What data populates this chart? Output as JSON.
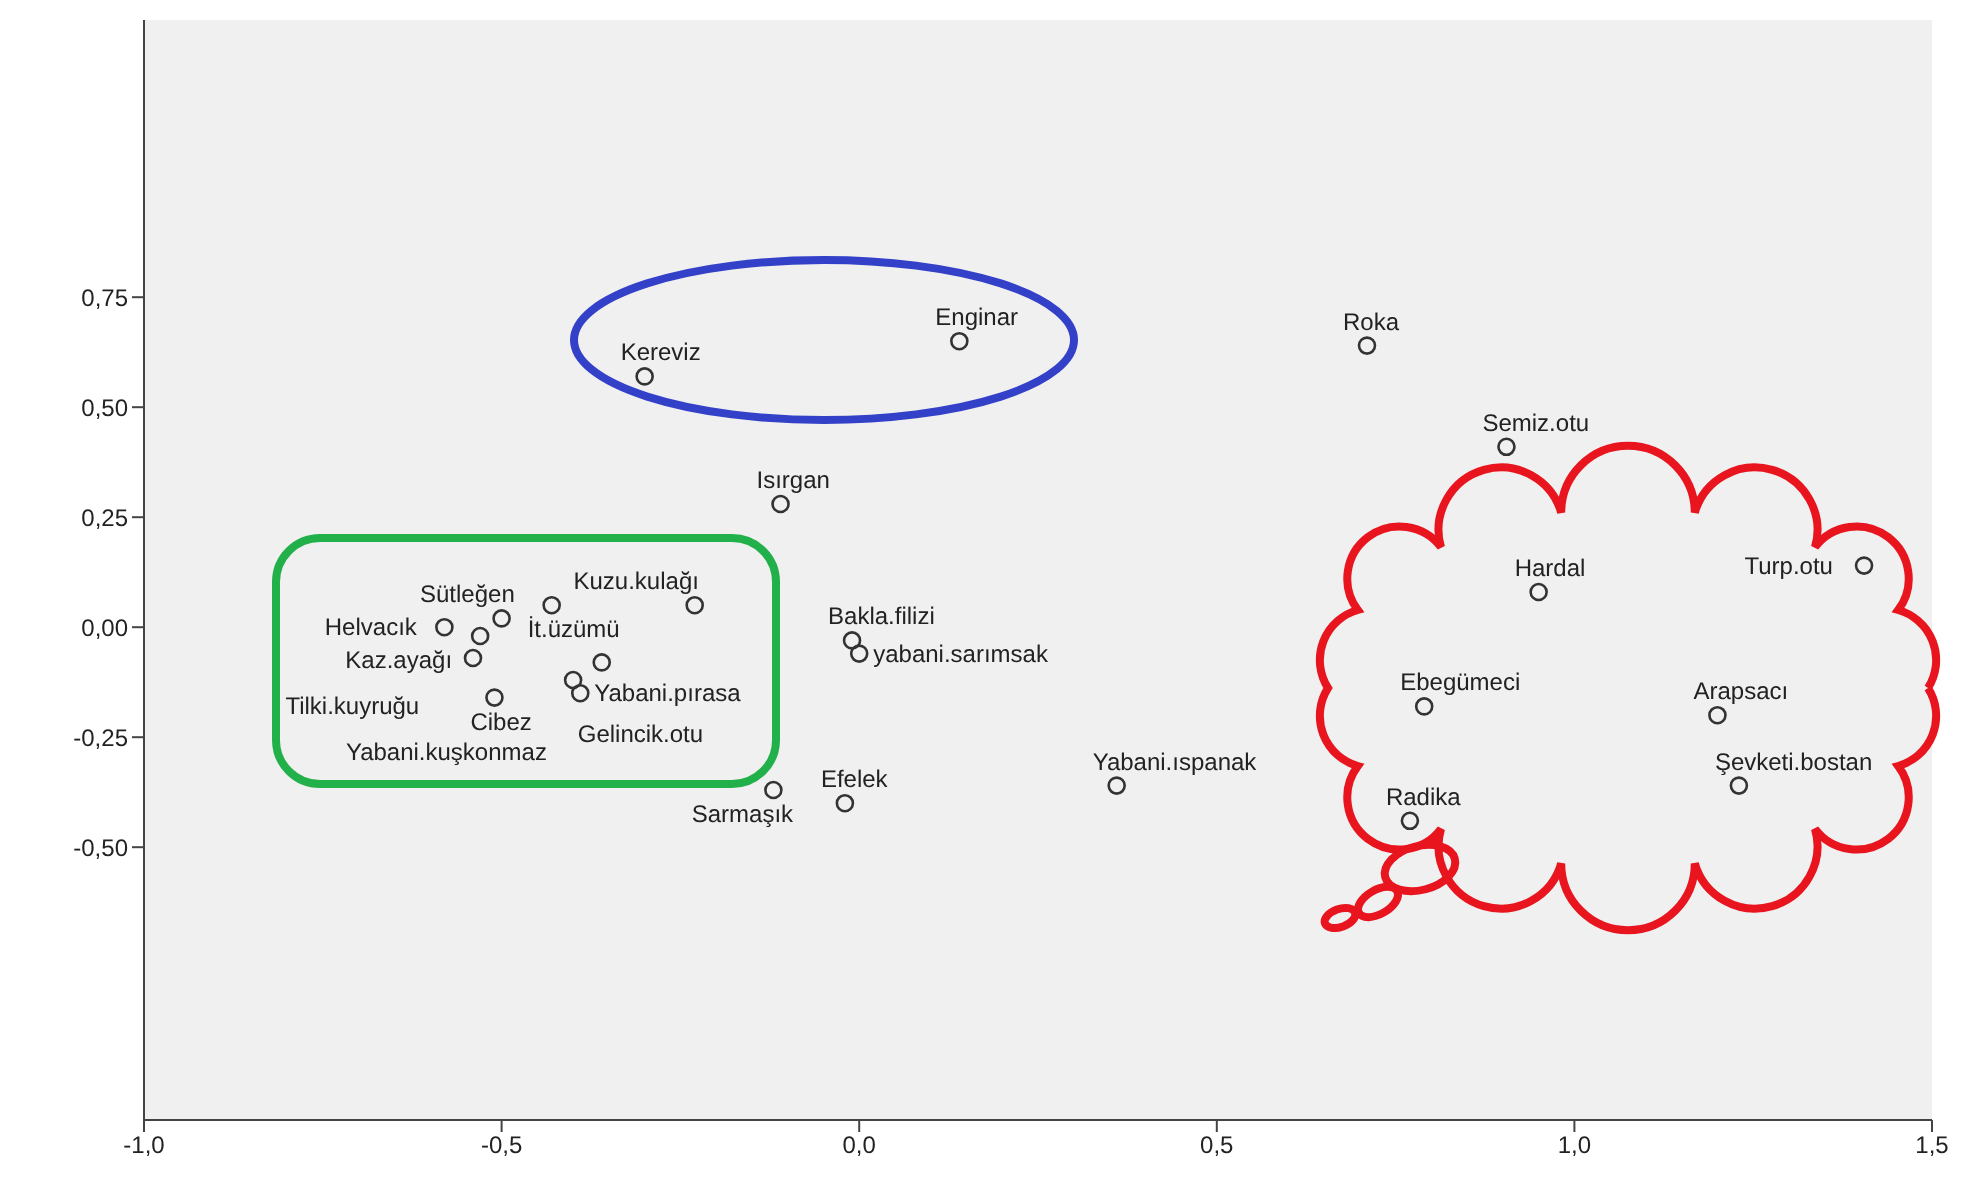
{
  "chart_data": {
    "type": "scatter",
    "x": [
      -0.3,
      0.14,
      0.71,
      0.905,
      -0.11,
      0.95,
      1.405,
      -0.01,
      0.79,
      1.2,
      1.23,
      0.77,
      0.36,
      -0.02,
      -0.12,
      -0.23,
      -0.5,
      -0.43,
      -0.58,
      -0.53,
      -0.54,
      -0.51,
      -0.36,
      -0.39,
      -0.4,
      0.0
    ],
    "series": [
      {
        "color": "#333333",
        "values": [
          0.57,
          0.65,
          0.64,
          0.41,
          0.28,
          0.08,
          0.14,
          -0.03,
          -0.18,
          -0.2,
          -0.36,
          -0.44,
          -0.36,
          -0.4,
          -0.37,
          0.05,
          0.02,
          0.05,
          0.0,
          -0.02,
          -0.07,
          -0.16,
          -0.08,
          -0.15,
          -0.12,
          -0.06
        ]
      }
    ],
    "annotations": [
      {
        "text": "Kereviz",
        "x": -0.3,
        "y": 0.57
      },
      {
        "text": "Enginar",
        "x": 0.14,
        "y": 0.65
      },
      {
        "text": "Roka",
        "x": 0.71,
        "y": 0.64
      },
      {
        "text": "Semiz.otu",
        "x": 0.905,
        "y": 0.41
      },
      {
        "text": "Isırgan",
        "x": -0.11,
        "y": 0.28
      },
      {
        "text": "Hardal",
        "x": 0.95,
        "y": 0.08
      },
      {
        "text": "Turp.otu",
        "x": 1.405,
        "y": 0.14
      },
      {
        "text": "Bakla.filizi",
        "x": -0.01,
        "y": -0.03
      },
      {
        "text": "Ebegümeci",
        "x": 0.79,
        "y": -0.18
      },
      {
        "text": "Arapsacı",
        "x": 1.2,
        "y": -0.2
      },
      {
        "text": "Şevketi.bostan",
        "x": 1.23,
        "y": -0.36
      },
      {
        "text": "Radika",
        "x": 0.77,
        "y": -0.44
      },
      {
        "text": "Yabani.ıspanak",
        "x": 0.36,
        "y": -0.36
      },
      {
        "text": "Efelek",
        "x": -0.02,
        "y": -0.4
      },
      {
        "text": "Sarmaşık",
        "x": -0.12,
        "y": -0.37
      },
      {
        "text": "Kuzu.kulağı",
        "x": -0.23,
        "y": 0.05
      },
      {
        "text": "Sütleğen",
        "x": -0.5,
        "y": 0.02
      },
      {
        "text": "İt.üzümü",
        "x": -0.43,
        "y": 0.05
      },
      {
        "text": "Helvacık",
        "x": -0.58,
        "y": 0.0
      },
      {
        "text": "Kaz.ayağı",
        "x": -0.53,
        "y": -0.02
      },
      {
        "text": "Tilki.kuyruğu",
        "x": -0.54,
        "y": -0.07
      },
      {
        "text": "Cibez",
        "x": -0.51,
        "y": -0.16
      },
      {
        "text": "Gelincik.otu",
        "x": -0.36,
        "y": -0.08
      },
      {
        "text": "Yabani.pırasa",
        "x": -0.39,
        "y": -0.15
      },
      {
        "text": "Yabani.kuşkonmaz",
        "x": -0.4,
        "y": -0.12
      },
      {
        "text": "yabani.sarımsak",
        "x": 0.0,
        "y": -0.06
      }
    ],
    "xlim": [
      -1.0,
      1.5
    ],
    "xticks": [
      {
        "value": -1.0,
        "label": "-1,0"
      },
      {
        "value": -0.5,
        "label": "-0,5"
      },
      {
        "value": 0.0,
        "label": "0,0"
      },
      {
        "value": 0.5,
        "label": "0,5"
      },
      {
        "value": 1.0,
        "label": "1,0"
      },
      {
        "value": 1.5,
        "label": "1,5"
      }
    ],
    "ylim": [
      -1.12,
      1.38
    ],
    "yticks": [
      {
        "value": -0.5,
        "label": "-0,50"
      },
      {
        "value": -0.25,
        "label": "-0,25"
      },
      {
        "value": 0.0,
        "label": "0,00"
      },
      {
        "value": 0.25,
        "label": "0,25"
      },
      {
        "value": 0.5,
        "label": "0,50"
      },
      {
        "value": 0.75,
        "label": "0,75"
      }
    ],
    "marker": "circle",
    "grid": false
  }
}
